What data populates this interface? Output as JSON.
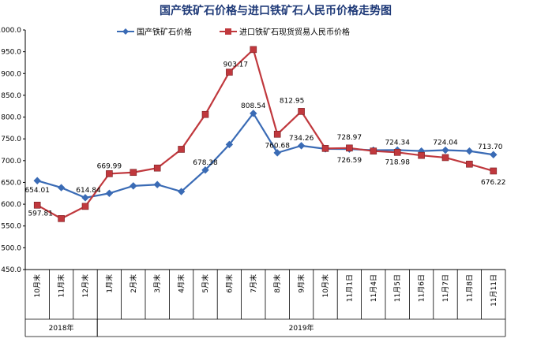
{
  "chart_data": {
    "type": "line",
    "title": "国产铁矿石价格与进口铁矿石人民币价格走势图",
    "categories": [
      "10月末",
      "11月末",
      "12月末",
      "1月末",
      "2月末",
      "3月末",
      "4月末",
      "5月末",
      "6月末",
      "7月末",
      "8月末",
      "9月末",
      "10月末",
      "11月1日",
      "11月4日",
      "11月5日",
      "11月6日",
      "11月7日",
      "11月8日",
      "11月11日"
    ],
    "year_groups": [
      {
        "label": "2018年",
        "start": 0,
        "end": 2
      },
      {
        "label": "2019年",
        "start": 3,
        "end": 19
      }
    ],
    "ylim": [
      450,
      1000
    ],
    "yticks": [
      "450.0",
      "500.0",
      "550.0",
      "600.0",
      "650.0",
      "700.0",
      "750.0",
      "800.0",
      "850.0",
      "900.0",
      "950.0",
      "1000.0"
    ],
    "legend_position": "top",
    "series": [
      {
        "name": "国产铁矿石价格",
        "color": "#3a6bb5",
        "marker": "diamond",
        "values": [
          654.01,
          638,
          614.84,
          625,
          642,
          645,
          629,
          678.38,
          737,
          808.54,
          718,
          734.26,
          727,
          726.59,
          724,
          724.34,
          722,
          724.04,
          722,
          713.7
        ]
      },
      {
        "name": "进口铁矿石现货贸易人民币价格",
        "color": "#c0383d",
        "marker": "square",
        "values": [
          597.81,
          567,
          595,
          669.99,
          673,
          683,
          726,
          806,
          903.17,
          955,
          760.68,
          812.95,
          728,
          728.97,
          722,
          718.98,
          712,
          707,
          692,
          676.22
        ]
      }
    ],
    "data_labels": [
      {
        "series": 0,
        "index": 0,
        "text": "654.01"
      },
      {
        "series": 0,
        "index": 2,
        "text": "614.84"
      },
      {
        "series": 0,
        "index": 7,
        "text": "678.38"
      },
      {
        "series": 0,
        "index": 9,
        "text": "808.54"
      },
      {
        "series": 0,
        "index": 11,
        "text": "734.26"
      },
      {
        "series": 0,
        "index": 13,
        "text": "726.59"
      },
      {
        "series": 0,
        "index": 15,
        "text": "724.34"
      },
      {
        "series": 0,
        "index": 17,
        "text": "724.04"
      },
      {
        "series": 0,
        "index": 19,
        "text": "713.70"
      },
      {
        "series": 1,
        "index": 0,
        "text": "597.81"
      },
      {
        "series": 1,
        "index": 3,
        "text": "669.99"
      },
      {
        "series": 1,
        "index": 8,
        "text": "903.17"
      },
      {
        "series": 1,
        "index": 10,
        "text": "760.68"
      },
      {
        "series": 1,
        "index": 11,
        "text": "812.95"
      },
      {
        "series": 1,
        "index": 13,
        "text": "728.97"
      },
      {
        "series": 1,
        "index": 15,
        "text": "718.98"
      },
      {
        "series": 1,
        "index": 19,
        "text": "676.22"
      }
    ]
  }
}
